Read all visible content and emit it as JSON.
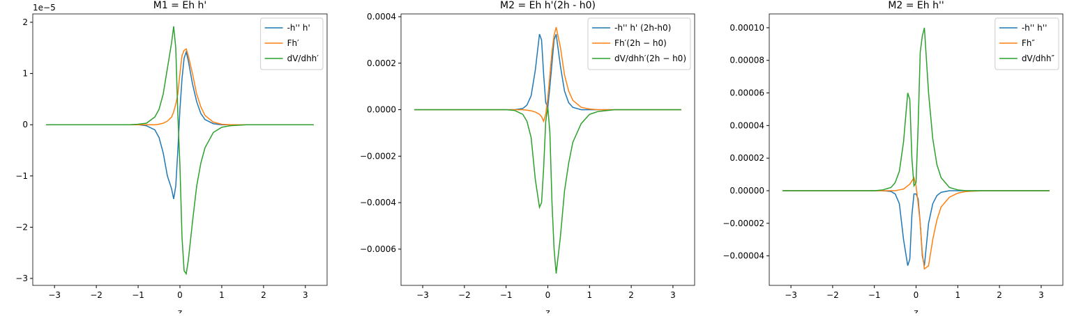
{
  "chart_data": [
    {
      "type": "line",
      "title": "M1 = Eh h'",
      "xlabel": "z",
      "offset_text": "1e−5",
      "legend": "upper right",
      "x": [
        -3.2,
        -2.4,
        -1.6,
        -1.2,
        -1.0,
        -0.8,
        -0.6,
        -0.5,
        -0.4,
        -0.3,
        -0.2,
        -0.15,
        -0.1,
        -0.05,
        0,
        0.05,
        0.1,
        0.15,
        0.2,
        0.3,
        0.4,
        0.5,
        0.6,
        0.8,
        1.0,
        1.2,
        1.6,
        2.4,
        3.2
      ],
      "xlim": [
        -3.52,
        3.52
      ],
      "xticks": [
        {
          "value": -3,
          "label": "−3"
        },
        {
          "value": -2,
          "label": "−2"
        },
        {
          "value": -1,
          "label": "−1"
        },
        0,
        1,
        2,
        3
      ],
      "ylim": [
        -3.136,
        2.163
      ],
      "yticks": [
        {
          "value": -3,
          "label": "−3"
        },
        {
          "value": -2,
          "label": "−2"
        },
        {
          "value": -1,
          "label": "−1"
        },
        0,
        1,
        2
      ],
      "series": [
        {
          "name": "-h'' h'",
          "color": "#1f77b4",
          "values": [
            0,
            0,
            0,
            0,
            0,
            -0.02,
            -0.1,
            -0.25,
            -0.55,
            -1.0,
            -1.25,
            -1.45,
            -1.2,
            -0.5,
            0.3,
            0.9,
            1.3,
            1.42,
            1.25,
            0.8,
            0.45,
            0.22,
            0.1,
            0.02,
            0,
            0,
            0,
            0,
            0
          ]
        },
        {
          "name": "Fh′",
          "color": "#ff7f0e",
          "values": [
            0,
            0,
            0,
            0,
            0,
            0,
            0,
            0.01,
            0.03,
            0.07,
            0.15,
            0.25,
            0.4,
            0.6,
            1.0,
            1.35,
            1.45,
            1.48,
            1.35,
            1.0,
            0.6,
            0.35,
            0.18,
            0.05,
            0.01,
            0,
            0,
            0,
            0
          ]
        },
        {
          "name": "dV/dhh′",
          "color": "#2ca02c",
          "values": [
            0,
            0,
            0,
            0,
            0.01,
            0.03,
            0.15,
            0.3,
            0.6,
            1.1,
            1.6,
            1.92,
            1.5,
            0.2,
            -0.8,
            -2.2,
            -2.85,
            -2.91,
            -2.65,
            -1.9,
            -1.2,
            -0.75,
            -0.45,
            -0.15,
            -0.05,
            -0.02,
            0,
            0,
            0
          ]
        }
      ]
    },
    {
      "type": "line",
      "title": "M2 = Eh h'(2h - h0)",
      "xlabel": "z",
      "legend": "upper right",
      "x": [
        -3.2,
        -2.4,
        -1.6,
        -1.2,
        -1.0,
        -0.8,
        -0.6,
        -0.5,
        -0.4,
        -0.3,
        -0.2,
        -0.15,
        -0.1,
        -0.05,
        0,
        0.05,
        0.1,
        0.15,
        0.2,
        0.3,
        0.4,
        0.5,
        0.6,
        0.8,
        1.0,
        1.2,
        1.6,
        2.4,
        3.2
      ],
      "xlim": [
        -3.52,
        3.52
      ],
      "xticks": [
        {
          "value": -3,
          "label": "−3"
        },
        {
          "value": -2,
          "label": "−2"
        },
        {
          "value": -1,
          "label": "−1"
        },
        0,
        1,
        2,
        3
      ],
      "ylim": [
        -0.000756,
        0.000412
      ],
      "yticks": [
        {
          "value": -0.0006,
          "label": "−0.0006"
        },
        {
          "value": -0.0004,
          "label": "−0.0004"
        },
        {
          "value": -0.0002,
          "label": "−0.0002"
        },
        {
          "value": 0,
          "label": "0.0000"
        },
        {
          "value": 0.0002,
          "label": "0.0002"
        },
        {
          "value": 0.0004,
          "label": "0.0004"
        }
      ],
      "series": [
        {
          "name": "-h'' h' (2h-h0)",
          "color": "#1f77b4",
          "values": [
            0,
            0,
            0,
            0,
            0,
            0,
            5e-06,
            2e-05,
            6e-05,
            0.00017,
            0.000325,
            0.0003,
            0.00015,
            3e-05,
            1e-05,
            0.0001,
            0.0002,
            0.0003,
            0.000325,
            0.00019,
            8e-05,
            3e-05,
            1e-05,
            0,
            0,
            0,
            0,
            0,
            0
          ]
        },
        {
          "name": "Fh′(2h − h0)",
          "color": "#ff7f0e",
          "values": [
            0,
            0,
            0,
            0,
            0,
            0,
            0,
            -2e-06,
            -5e-06,
            -1e-05,
            -2e-05,
            -3e-05,
            -5e-05,
            -2e-05,
            5e-05,
            0.00015,
            0.00025,
            0.00032,
            0.000355,
            0.00027,
            0.00015,
            8e-05,
            4e-05,
            1e-05,
            3e-06,
            0,
            0,
            0,
            0
          ]
        },
        {
          "name": "dV/dhh′(2h − h0)",
          "color": "#2ca02c",
          "values": [
            0,
            0,
            0,
            0,
            0,
            -3e-06,
            -2e-05,
            -5e-05,
            -0.00012,
            -0.0003,
            -0.00042,
            -0.0004,
            -0.00025,
            -5e-05,
            1e-05,
            -0.0001,
            -0.0004,
            -0.0006,
            -0.000705,
            -0.00055,
            -0.00035,
            -0.00023,
            -0.00014,
            -6e-05,
            -2e-05,
            -8e-06,
            0,
            0,
            0
          ]
        }
      ]
    },
    {
      "type": "line",
      "title": "M2 = Eh h''",
      "xlabel": "z",
      "legend": "upper right",
      "x": [
        -3.2,
        -2.4,
        -1.6,
        -1.2,
        -1.0,
        -0.8,
        -0.6,
        -0.5,
        -0.4,
        -0.3,
        -0.2,
        -0.15,
        -0.1,
        -0.05,
        0,
        0.05,
        0.1,
        0.15,
        0.2,
        0.3,
        0.4,
        0.5,
        0.6,
        0.8,
        1.0,
        1.2,
        1.6,
        2.4,
        3.2
      ],
      "xlim": [
        -3.52,
        3.52
      ],
      "xticks": [
        {
          "value": -3,
          "label": "−3"
        },
        {
          "value": -2,
          "label": "−2"
        },
        {
          "value": -1,
          "label": "−1"
        },
        0,
        1,
        2,
        3
      ],
      "ylim": [
        -5.81e-05,
        0.0001085
      ],
      "yticks": [
        {
          "value": -4e-05,
          "label": "−0.00004"
        },
        {
          "value": -2e-05,
          "label": "−0.00002"
        },
        {
          "value": 0,
          "label": "0.00000"
        },
        {
          "value": 2e-05,
          "label": "0.00002"
        },
        {
          "value": 4e-05,
          "label": "0.00004"
        },
        {
          "value": 6e-05,
          "label": "0.00006"
        },
        {
          "value": 8e-05,
          "label": "0.00008"
        },
        {
          "value": 0.0001,
          "label": "0.00010"
        }
      ],
      "series": [
        {
          "name": "-h'' h''",
          "color": "#1f77b4",
          "values": [
            0,
            0,
            0,
            0,
            0,
            0,
            -5e-07,
            -2e-06,
            -8e-06,
            -3e-05,
            -4.6e-05,
            -4.2e-05,
            -1.5e-05,
            -2e-06,
            -2e-06,
            -5e-06,
            -2e-05,
            -4e-05,
            -4.6e-05,
            -2e-05,
            -8e-06,
            -3e-06,
            -1e-06,
            0,
            0,
            0,
            0,
            0,
            0
          ]
        },
        {
          "name": "Fh″",
          "color": "#ff7f0e",
          "values": [
            0,
            0,
            0,
            0,
            0,
            0,
            0,
            0,
            5e-07,
            1e-06,
            3e-06,
            4e-06,
            6e-06,
            8e-06,
            3e-06,
            -8e-06,
            -2e-05,
            -3.8e-05,
            -4.8e-05,
            -4.6e-05,
            -3e-05,
            -1.8e-05,
            -1e-05,
            -4e-06,
            -1.5e-06,
            -5e-07,
            0,
            0,
            0
          ]
        },
        {
          "name": "dV/dhh″",
          "color": "#2ca02c",
          "values": [
            0,
            0,
            0,
            0,
            0,
            5e-07,
            2e-06,
            5e-06,
            1.2e-05,
            3e-05,
            6e-05,
            5.6e-05,
            2e-05,
            3e-06,
            5e-06,
            4e-05,
            8.5e-05,
            9.5e-05,
            0.0001,
            6e-05,
            3.2e-05,
            1.6e-05,
            8e-06,
            2e-06,
            5e-07,
            0,
            0,
            0,
            0
          ]
        }
      ]
    }
  ]
}
